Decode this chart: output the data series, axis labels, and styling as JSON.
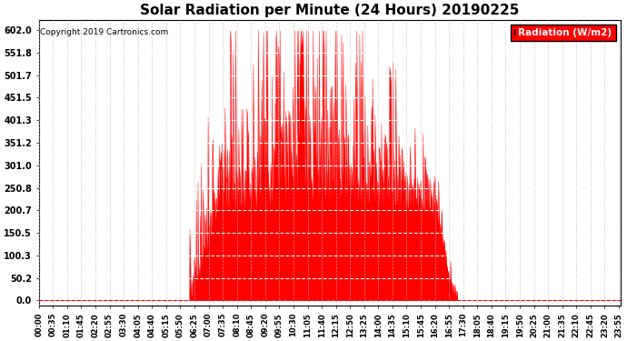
{
  "title": "Solar Radiation per Minute (24 Hours) 20190225",
  "copyright_text": "Copyright 2019 Cartronics.com",
  "legend_label": "Radiation (W/m2)",
  "fill_color": "#FF0000",
  "line_color": "#FF0000",
  "bg_color": "#FFFFFF",
  "yticks": [
    0.0,
    50.2,
    100.3,
    150.5,
    200.7,
    250.8,
    301.0,
    351.2,
    401.3,
    451.5,
    501.7,
    551.8,
    602.0
  ],
  "ymax": 625,
  "ymin": -12,
  "total_minutes": 1440,
  "sunrise_minute": 373,
  "sunset_minute": 1035,
  "peak_minute": 655,
  "peak_value": 602.0,
  "xtick_step": 35
}
